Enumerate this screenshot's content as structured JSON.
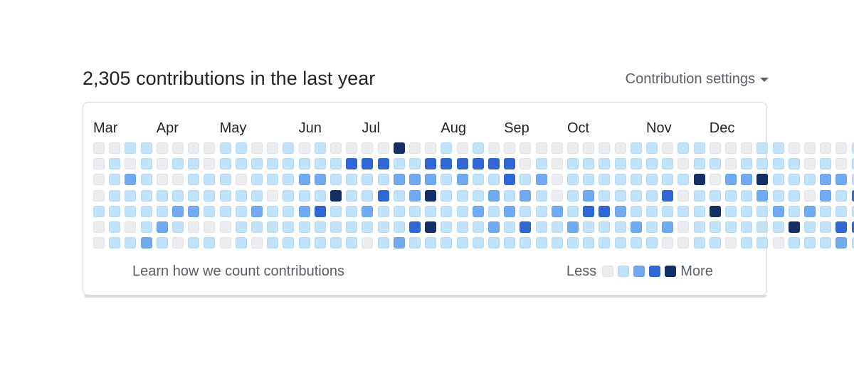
{
  "header": {
    "title": "2,305 contributions in the last year",
    "settings_label": "Contribution settings",
    "settings_icon": "caret-down-icon"
  },
  "months": [
    {
      "label": "Mar",
      "week": 0
    },
    {
      "label": "Apr",
      "week": 4
    },
    {
      "label": "May",
      "week": 8
    },
    {
      "label": "Jun",
      "week": 13
    },
    {
      "label": "Jul",
      "week": 17
    },
    {
      "label": "Aug",
      "week": 22
    },
    {
      "label": "Sep",
      "week": 26
    },
    {
      "label": "Oct",
      "week": 30
    },
    {
      "label": "Nov",
      "week": 35
    },
    {
      "label": "Dec",
      "week": 39
    }
  ],
  "levels": [
    "#ebedf0",
    "#c0e3fb",
    "#70aaf0",
    "#2f68d4",
    "#132f66"
  ],
  "grid": [
    "0011000011001010000400101000000000110110001100001",
    "0101011011111111333113333330101111111011011110101",
    "0121001110111221111222121131201111111140224111221",
    "0111111111101114113124111212101211113011112110213",
    "1111122111211231121111112121121332111114111212111",
    "0101210001111111111134111213112111212011111141133",
    "0112101101011111101211111111111111110011011011121"
  ],
  "footer": {
    "learn_link": "Learn how we count contributions",
    "legend_less": "Less",
    "legend_more": "More"
  }
}
